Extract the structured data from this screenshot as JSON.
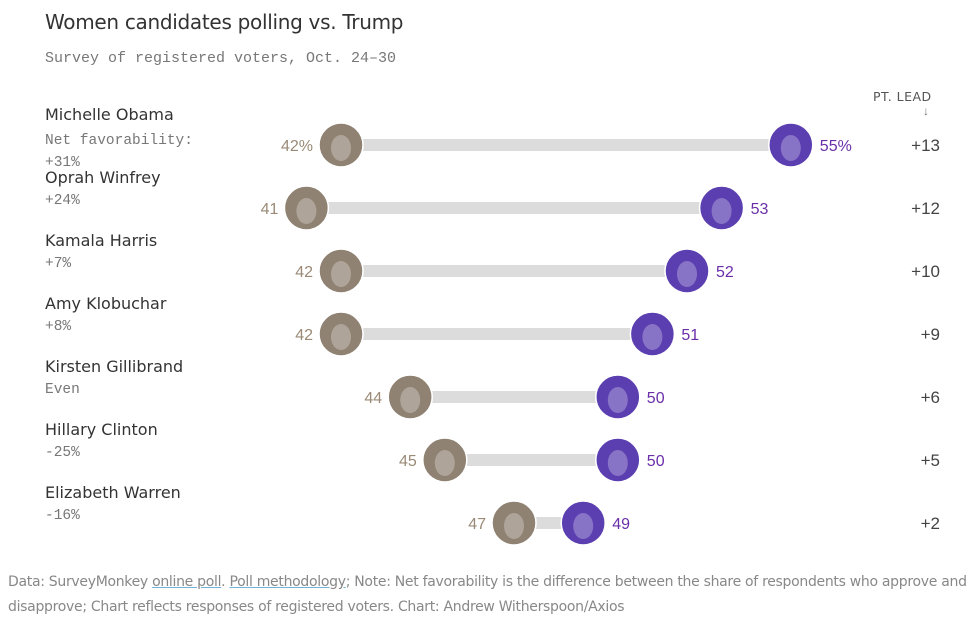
{
  "chart_data": {
    "type": "dumbbell",
    "title": "Women candidates polling vs. Trump",
    "subtitle": "Survey of registered voters, Oct. 24–30",
    "lead_header": "PT. LEAD",
    "lead_arrow": "↓",
    "opponent": "Trump",
    "colors": {
      "trump": "#9a8a76",
      "candidate": "#6a2ea8",
      "bar": "#dcdcdc",
      "trump_face": "#8f8272",
      "candidate_face": "#5b3fb0"
    },
    "rows": [
      {
        "name": "Michelle Obama",
        "favorability": "Net favorability:\n+31%",
        "trump": 42,
        "candidate": 55,
        "trump_label": "42%",
        "candidate_label": "55%",
        "lead": "+13"
      },
      {
        "name": "Oprah Winfrey",
        "favorability": "+24%",
        "trump": 41,
        "candidate": 53,
        "trump_label": "41",
        "candidate_label": "53",
        "lead": "+12"
      },
      {
        "name": "Kamala Harris",
        "favorability": "+7%",
        "trump": 42,
        "candidate": 52,
        "trump_label": "42",
        "candidate_label": "52",
        "lead": "+10"
      },
      {
        "name": "Amy Klobuchar",
        "favorability": "+8%",
        "trump": 42,
        "candidate": 51,
        "trump_label": "42",
        "candidate_label": "51",
        "lead": "+9"
      },
      {
        "name": "Kirsten Gillibrand",
        "favorability": "Even",
        "trump": 44,
        "candidate": 50,
        "trump_label": "44",
        "candidate_label": "50",
        "lead": "+6"
      },
      {
        "name": "Hillary Clinton",
        "favorability": "-25%",
        "trump": 45,
        "candidate": 50,
        "trump_label": "45",
        "candidate_label": "50",
        "lead": "+5"
      },
      {
        "name": "Elizabeth Warren",
        "favorability": "-16%",
        "trump": 47,
        "candidate": 49,
        "trump_label": "47",
        "candidate_label": "49",
        "lead": "+2"
      }
    ]
  },
  "footer": {
    "prefix": "Data: SurveyMonkey ",
    "link1": "online poll",
    "sep": ". ",
    "link2": "Poll methodology",
    "rest": "; Note: Net favorability is the difference between the share of respondents who approve and disapprove; Chart reflects responses of registered voters. Chart: Andrew Witherspoon/Axios"
  }
}
